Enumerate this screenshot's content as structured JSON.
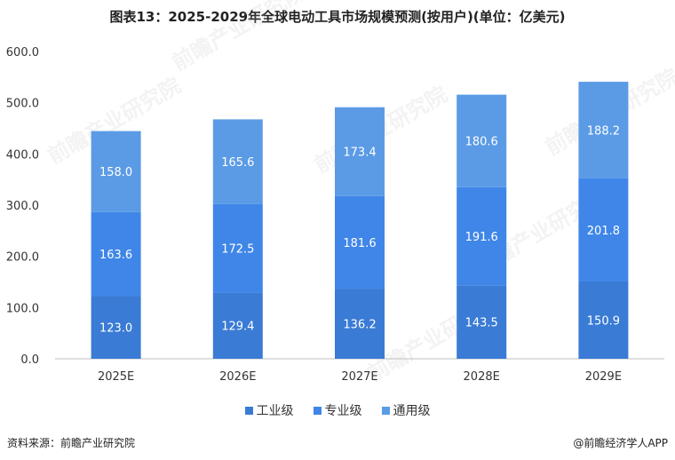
{
  "title": "图表13：2025-2029年全球电动工具市场规模预测(按用户)(单位：亿美元)",
  "source": "资料来源：前瞻产业研究院",
  "brand": "@前瞻经济学人APP",
  "watermark": "前瞻产业研究院",
  "chart_data": {
    "type": "bar",
    "stacked": true,
    "categories": [
      "2025E",
      "2026E",
      "2027E",
      "2028E",
      "2029E"
    ],
    "series": [
      {
        "name": "工业级",
        "color": "#3a7bd5",
        "values": [
          123.0,
          129.4,
          136.2,
          143.5,
          150.9
        ]
      },
      {
        "name": "专业级",
        "color": "#3f86e8",
        "values": [
          163.6,
          172.5,
          181.6,
          191.6,
          201.8
        ]
      },
      {
        "name": "通用级",
        "color": "#5b9be6",
        "values": [
          158.0,
          165.6,
          173.4,
          180.6,
          188.2
        ]
      }
    ],
    "ylim": [
      0,
      600
    ],
    "yticks": [
      "0.0",
      "100.0",
      "200.0",
      "300.0",
      "400.0",
      "500.0",
      "600.0"
    ],
    "legend_position": "bottom",
    "grid": false
  }
}
